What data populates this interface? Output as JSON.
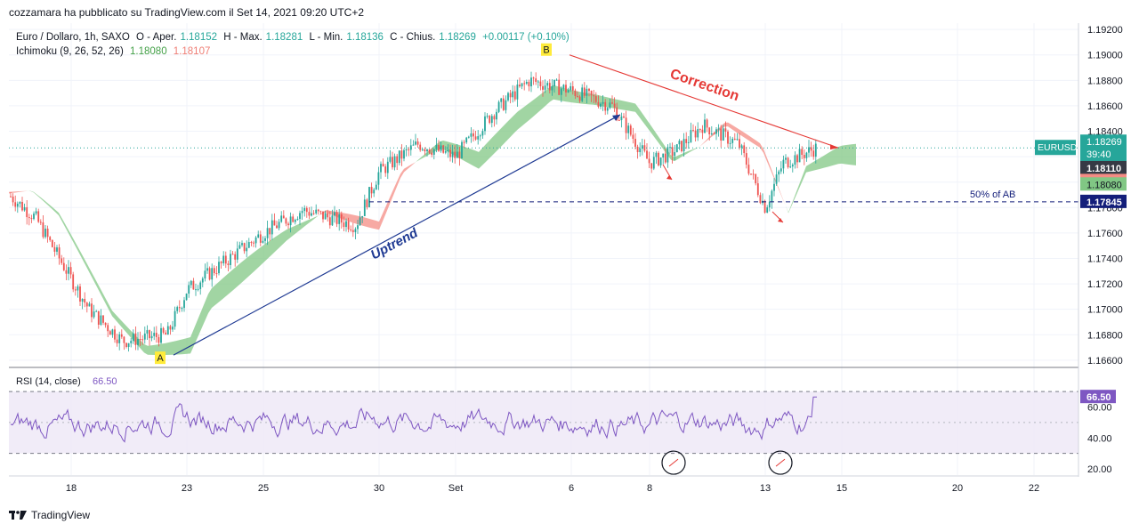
{
  "publisher_line": "cozzamara ha pubblicato su TradingView.com il Set 14, 2021 09:20 UTC+2",
  "footer": {
    "brand": "TradingView",
    "logo_icon": "tradingview-logo-icon"
  },
  "legend": {
    "symbol": "Euro / Dollaro, 1h, SAXO",
    "open_label": "O - Aper.",
    "open": "1.18152",
    "high_label": "H - Max.",
    "high": "1.18281",
    "low_label": "L - Min.",
    "low": "1.18136",
    "close_label": "C - Chius.",
    "close": "1.18269",
    "change": "+0.00117 (+0.10%)",
    "indicator": "Ichimoku (9, 26, 52, 26)",
    "ichi_a": "1.18080",
    "ichi_b": "1.18107"
  },
  "colors": {
    "up": "#26a69a",
    "down": "#ef5350",
    "cloud_up": "#81c784",
    "cloud_down": "#f48c84",
    "trend": "#1f3a93",
    "correction": "#e53935",
    "rsi": "#7e57c2",
    "last_price": "#26a69a"
  },
  "annotations": {
    "uptrend": "Uptrend",
    "correction": "Correction",
    "fib50": "50% of AB",
    "point_a": "A",
    "point_b": "B"
  },
  "chart_data": [
    {
      "type": "candlestick",
      "title": "Euro / Dollaro, 1h, SAXO",
      "y_ticks": [
        "1.19200",
        "1.19000",
        "1.18800",
        "1.18600",
        "1.18400",
        "1.18200",
        "1.18000",
        "1.17800",
        "1.17600",
        "1.17400",
        "1.17200",
        "1.17000",
        "1.16800",
        "1.16600"
      ],
      "ylim": [
        1.1655,
        1.1925
      ],
      "x_ticks": [
        "18",
        "23",
        "25",
        "30",
        "Set",
        "6",
        "8",
        "13",
        "15",
        "20",
        "22"
      ],
      "anchors": [
        {
          "x": "A",
          "y": 1.1664
        },
        {
          "x": "start",
          "y": 1.179
        },
        {
          "x": "17",
          "y": 1.1772
        },
        {
          "x": "19",
          "y": 1.17
        },
        {
          "x": "20",
          "y": 1.1675
        },
        {
          "x": "22",
          "y": 1.168
        },
        {
          "x": "23",
          "y": 1.1715
        },
        {
          "x": "25",
          "y": 1.176
        },
        {
          "x": "27",
          "y": 1.1778
        },
        {
          "x": "29",
          "y": 1.1766
        },
        {
          "x": "30",
          "y": 1.1808
        },
        {
          "x": "31",
          "y": 1.183
        },
        {
          "x": "Set",
          "y": 1.182
        },
        {
          "x": "2",
          "y": 1.1855
        },
        {
          "x": "3",
          "y": 1.188
        },
        {
          "x": "B",
          "y": 1.1895
        },
        {
          "x": "6",
          "y": 1.1872
        },
        {
          "x": "7",
          "y": 1.186
        },
        {
          "x": "8",
          "y": 1.1815
        },
        {
          "x": "9",
          "y": 1.1825
        },
        {
          "x": "10",
          "y": 1.1845
        },
        {
          "x": "12",
          "y": 1.183
        },
        {
          "x": "13",
          "y": 1.178
        },
        {
          "x": "14",
          "y": 1.1815
        },
        {
          "x": "last",
          "y": 1.1827
        }
      ],
      "price_labels": [
        {
          "symbol": "EURUSD",
          "value": "1.18269",
          "countdown": "39:40",
          "color": "#26a69a"
        },
        {
          "value": "1.18110",
          "color": "#363a45"
        },
        {
          "value": "1.18107",
          "color": "#f48c84"
        },
        {
          "value": "1.18080",
          "color": "#81c784"
        },
        {
          "value": "1.17845",
          "color": "#131e7a"
        }
      ]
    },
    {
      "type": "line",
      "title": "RSI (14, close)",
      "value": "66.50",
      "y_ticks": [
        "60.00",
        "40.00",
        "20.00"
      ],
      "ylim": [
        16,
        85
      ],
      "bands": [
        30,
        70
      ]
    }
  ]
}
